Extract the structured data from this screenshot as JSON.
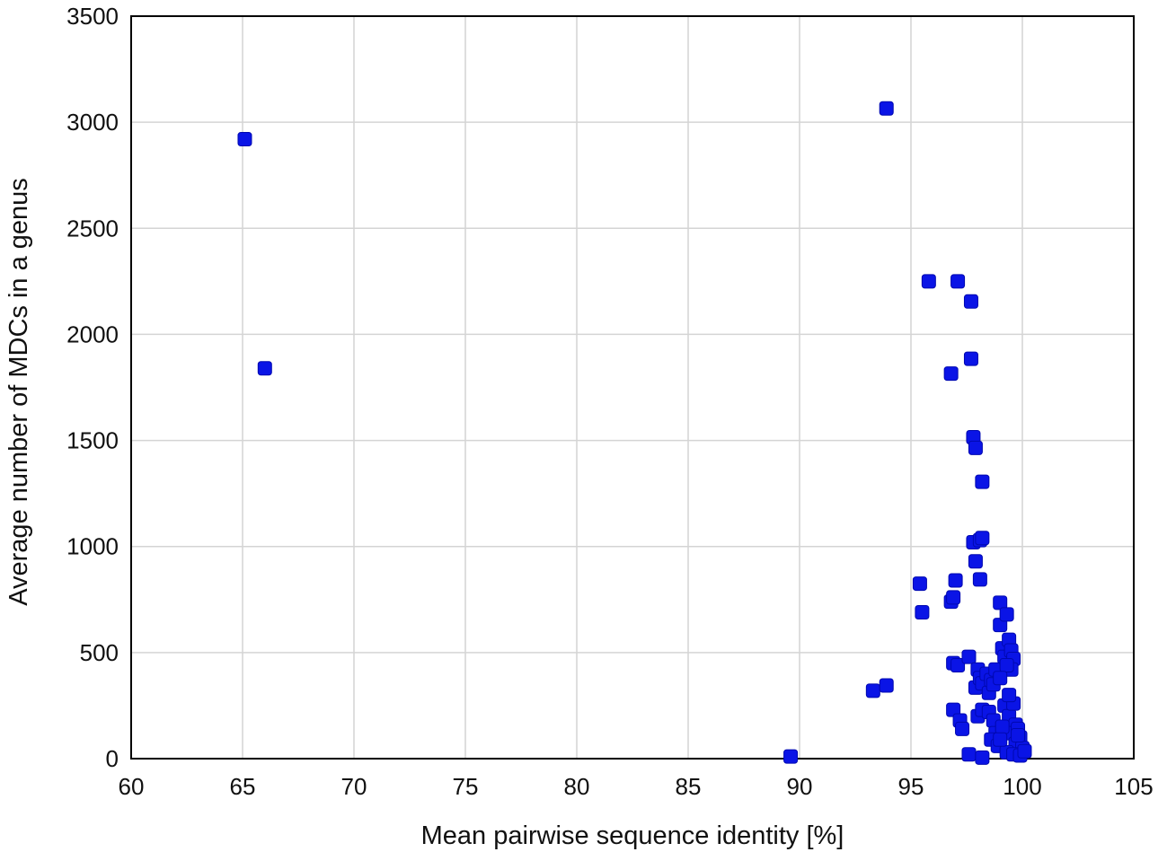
{
  "chart_data": {
    "type": "scatter",
    "title": "",
    "xlabel": "Mean pairwise sequence identity [%]",
    "ylabel": "Average number of MDCs in a genus",
    "xlim": [
      60,
      105
    ],
    "ylim": [
      0,
      3500
    ],
    "xticks": [
      60,
      65,
      70,
      75,
      80,
      85,
      90,
      95,
      100,
      105
    ],
    "yticks": [
      0,
      500,
      1000,
      1500,
      2000,
      2500,
      3000,
      3500
    ],
    "grid": true,
    "legend": "none",
    "marker_color": "#0a14e6",
    "series": [
      {
        "points": [
          [
            65.1,
            2920
          ],
          [
            66.0,
            1840
          ],
          [
            93.9,
            3065
          ],
          [
            89.6,
            10
          ],
          [
            93.3,
            320
          ],
          [
            93.9,
            345
          ],
          [
            95.4,
            825
          ],
          [
            95.5,
            690
          ],
          [
            95.8,
            2250
          ],
          [
            96.8,
            1815
          ],
          [
            96.8,
            740
          ],
          [
            96.9,
            760
          ],
          [
            97.0,
            840
          ],
          [
            97.1,
            2250
          ],
          [
            96.9,
            450
          ],
          [
            97.1,
            440
          ],
          [
            96.9,
            230
          ],
          [
            97.2,
            180
          ],
          [
            97.3,
            140
          ],
          [
            97.7,
            2155
          ],
          [
            97.7,
            1885
          ],
          [
            97.8,
            1515
          ],
          [
            97.9,
            1465
          ],
          [
            98.2,
            1305
          ],
          [
            97.8,
            1020
          ],
          [
            98.1,
            1030
          ],
          [
            98.2,
            1040
          ],
          [
            97.9,
            930
          ],
          [
            98.1,
            845
          ],
          [
            97.6,
            480
          ],
          [
            97.9,
            335
          ],
          [
            98.0,
            420
          ],
          [
            98.1,
            380
          ],
          [
            98.2,
            355
          ],
          [
            98.0,
            200
          ],
          [
            98.2,
            230
          ],
          [
            97.6,
            20
          ],
          [
            98.2,
            5
          ],
          [
            98.4,
            400
          ],
          [
            98.5,
            310
          ],
          [
            98.6,
            370
          ],
          [
            98.7,
            350
          ],
          [
            98.8,
            420
          ],
          [
            98.5,
            220
          ],
          [
            98.7,
            180
          ],
          [
            98.8,
            120
          ],
          [
            98.6,
            90
          ],
          [
            98.9,
            60
          ],
          [
            99.0,
            735
          ],
          [
            99.0,
            630
          ],
          [
            99.3,
            680
          ],
          [
            99.1,
            520
          ],
          [
            99.2,
            480
          ],
          [
            99.4,
            560
          ],
          [
            99.5,
            510
          ],
          [
            99.6,
            470
          ],
          [
            99.5,
            420
          ],
          [
            99.3,
            440
          ],
          [
            99.0,
            380
          ],
          [
            99.2,
            250
          ],
          [
            99.4,
            200
          ],
          [
            99.6,
            260
          ],
          [
            99.7,
            160
          ],
          [
            99.5,
            120
          ],
          [
            99.8,
            140
          ],
          [
            99.9,
            100
          ],
          [
            99.7,
            70
          ],
          [
            100.0,
            50
          ],
          [
            99.3,
            30
          ],
          [
            99.6,
            20
          ],
          [
            99.9,
            15
          ],
          [
            100.1,
            35
          ],
          [
            99.8,
            110
          ],
          [
            99.1,
            150
          ],
          [
            99.0,
            90
          ],
          [
            99.4,
            300
          ]
        ]
      }
    ]
  }
}
